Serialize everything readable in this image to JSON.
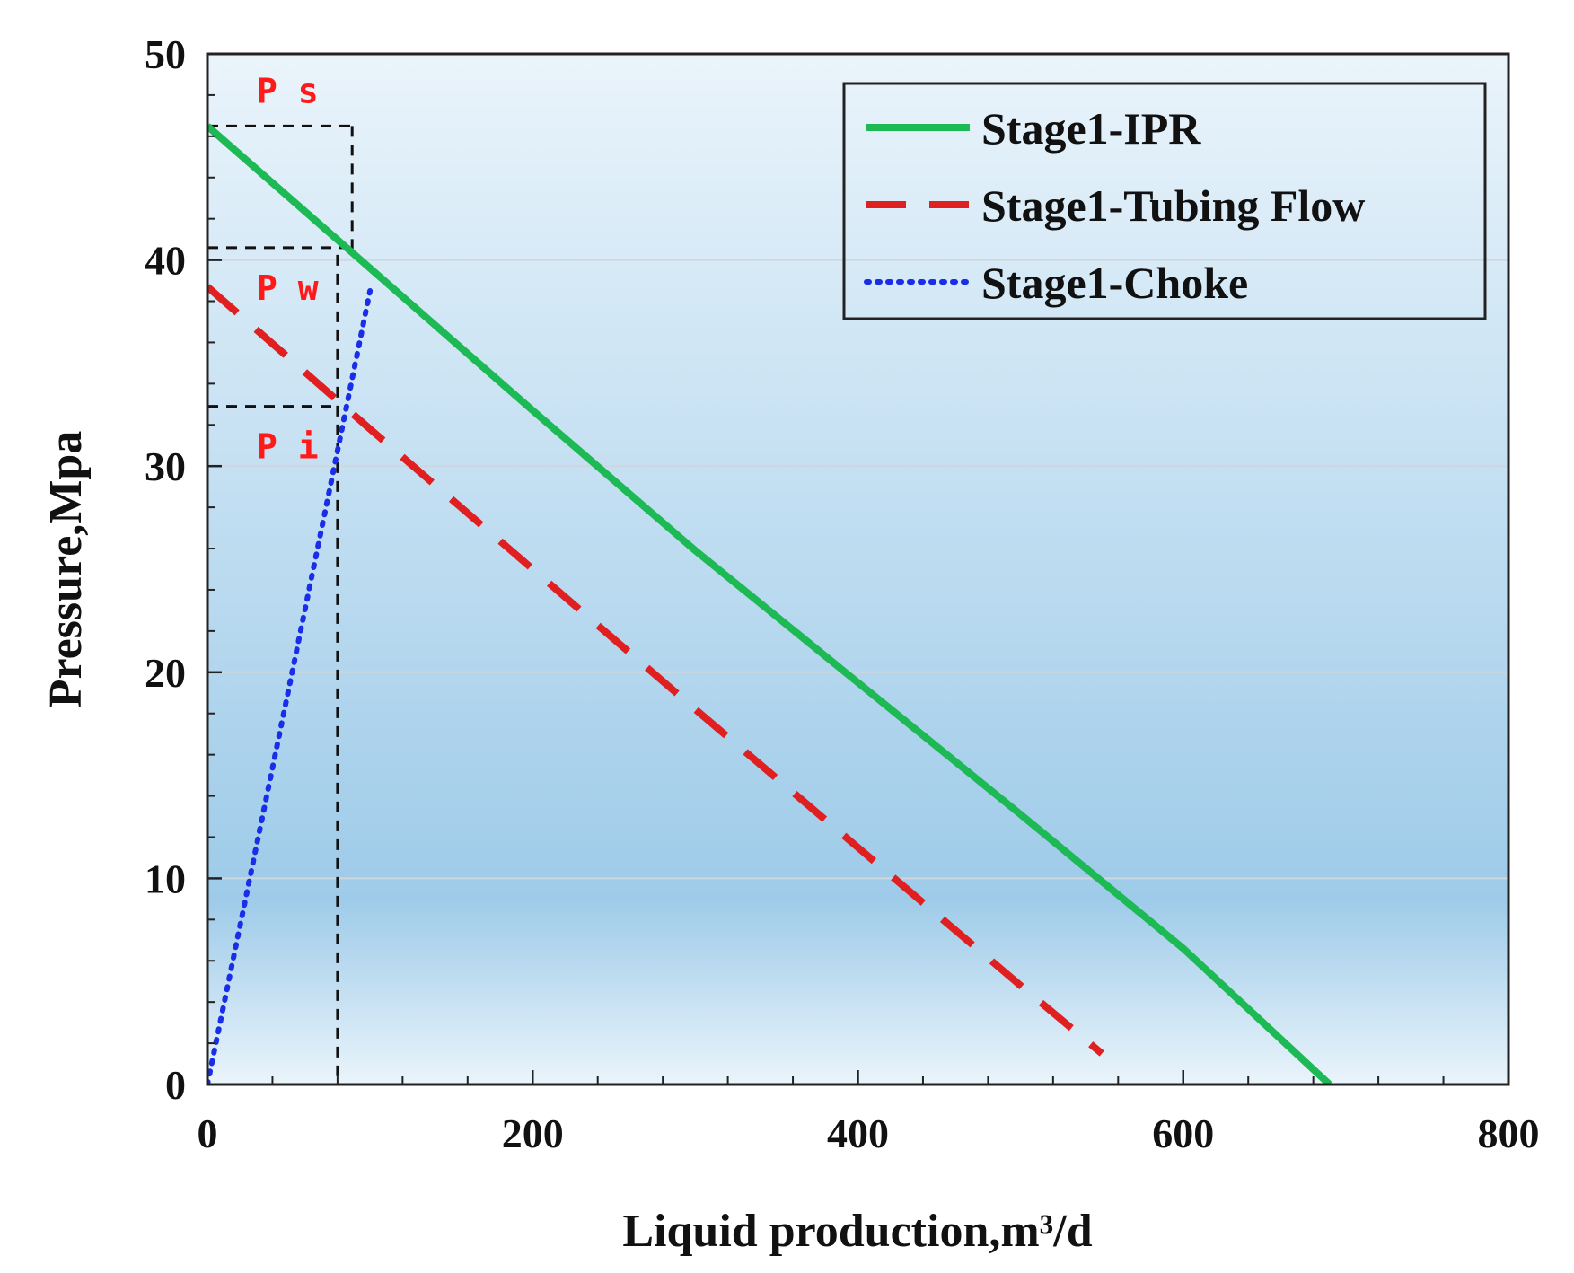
{
  "chart_data": {
    "type": "line",
    "title": "",
    "xlabel": "Liquid production,m³/d",
    "ylabel": "Pressure,Mpa",
    "xlim": [
      0,
      800
    ],
    "ylim": [
      0,
      50
    ],
    "x_ticks": [
      "0",
      "200",
      "400",
      "600",
      "800"
    ],
    "y_ticks": [
      "0",
      "10",
      "20",
      "30",
      "40",
      "50"
    ],
    "grid": "horizontal",
    "legend_position": "top-right",
    "series": [
      {
        "name": "Stage1-IPR",
        "style": "solid",
        "color": "#1db954",
        "x": [
          0,
          100,
          200,
          300,
          400,
          500,
          600,
          690
        ],
        "y": [
          46.5,
          39.6,
          32.7,
          25.9,
          19.5,
          13.1,
          6.6,
          0
        ]
      },
      {
        "name": "Stage1-Tubing Flow",
        "style": "dashed",
        "color": "#e02020",
        "x": [
          0,
          100,
          200,
          300,
          400,
          500,
          550
        ],
        "y": [
          38.7,
          31.8,
          25.0,
          18.2,
          11.5,
          4.8,
          1.5
        ]
      },
      {
        "name": "Stage1-Choke",
        "style": "dotted",
        "color": "#1a2ee8",
        "x": [
          0,
          25,
          50,
          75,
          100
        ],
        "y": [
          0,
          9.6,
          19.2,
          28.8,
          38.5
        ]
      }
    ],
    "annotations": [
      {
        "label": "Ps",
        "pressure": 46.5,
        "production": 89
      },
      {
        "label": "Pw",
        "pressure": 40.6,
        "production": 89
      },
      {
        "label": "Pi",
        "pressure": 32.9,
        "production": 80
      }
    ]
  },
  "colors": {
    "annotation_text": "#ff1a1a",
    "guide_lines": "#111111",
    "plot_bg_top": "#eaf4fb",
    "plot_bg_bottom": "#9ecbe9"
  }
}
